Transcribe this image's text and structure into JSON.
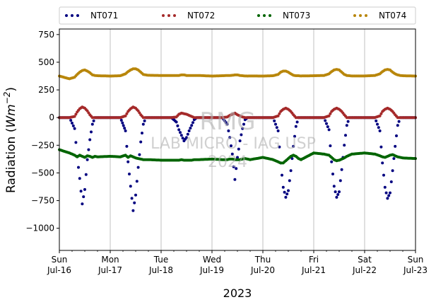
{
  "chart_data": {
    "type": "scatter",
    "year_label": "2023",
    "ylabel_prefix": "Radiation (",
    "ylabel_unit": "Wm",
    "ylabel_exp": "−2",
    "ylabel_suffix": ")",
    "ylim": [
      -1200,
      800
    ],
    "yticks": [
      750,
      500,
      250,
      0,
      -250,
      -500,
      -750,
      -1000
    ],
    "ytick_labels": [
      "750",
      "500",
      "250",
      "0",
      "−250",
      "−500",
      "−750",
      "−1000"
    ],
    "xlim": [
      "2023-07-16T00:00",
      "2023-07-23T00:00"
    ],
    "xticks": [
      {
        "day": "Sun",
        "date": "Jul-16"
      },
      {
        "day": "Mon",
        "date": "Jul-17"
      },
      {
        "day": "Tue",
        "date": "Jul-18"
      },
      {
        "day": "Wed",
        "date": "Jul-19"
      },
      {
        "day": "Thu",
        "date": "Jul-20"
      },
      {
        "day": "Fri",
        "date": "Jul-21"
      },
      {
        "day": "Sat",
        "date": "Jul-22"
      },
      {
        "day": "Sun",
        "date": "Jul-23"
      }
    ],
    "grid": "vertical",
    "legend_placement": "top",
    "watermark": {
      "line1": "RMG",
      "line2": "LAB MICRO - IAG USP",
      "line3": "2024"
    },
    "series": [
      {
        "name": "NT071",
        "color": "#000080",
        "x": [
          0.0,
          0.2,
          0.3,
          0.35,
          0.4,
          0.45,
          0.5,
          0.55,
          0.6,
          0.65,
          0.7,
          0.75,
          1.0,
          1.2,
          1.3,
          1.35,
          1.4,
          1.45,
          1.5,
          1.55,
          1.6,
          1.65,
          1.7,
          1.75,
          2.0,
          2.2,
          2.3,
          2.35,
          2.4,
          2.45,
          2.5,
          2.55,
          2.6,
          2.65,
          2.7,
          2.75,
          3.0,
          3.2,
          3.3,
          3.35,
          3.4,
          3.45,
          3.5,
          3.55,
          3.6,
          3.65,
          3.7,
          3.75,
          4.0,
          4.2,
          4.3,
          4.35,
          4.4,
          4.45,
          4.5,
          4.55,
          4.6,
          4.65,
          4.7,
          4.75,
          5.0,
          5.2,
          5.3,
          5.35,
          5.4,
          5.45,
          5.5,
          5.55,
          5.6,
          5.65,
          5.7,
          5.75,
          6.0,
          6.2,
          6.3,
          6.35,
          6.4,
          6.45,
          6.5,
          6.55,
          6.6,
          6.65,
          6.7,
          6.75,
          7.0
        ],
        "y": [
          0,
          0,
          -100,
          -350,
          -550,
          -780,
          -650,
          -380,
          -200,
          -60,
          0,
          0,
          0,
          0,
          -120,
          -400,
          -620,
          -840,
          -700,
          -450,
          -220,
          -60,
          0,
          0,
          0,
          0,
          -40,
          -110,
          -160,
          -210,
          -180,
          -120,
          -70,
          -20,
          0,
          0,
          0,
          0,
          -60,
          -180,
          -330,
          -560,
          -360,
          -210,
          -100,
          -20,
          0,
          0,
          0,
          0,
          -120,
          -410,
          -630,
          -720,
          -660,
          -480,
          -260,
          -80,
          0,
          0,
          0,
          0,
          -110,
          -400,
          -620,
          -720,
          -670,
          -470,
          -250,
          -70,
          0,
          0,
          0,
          0,
          -120,
          -410,
          -630,
          -730,
          -680,
          -480,
          -260,
          -70,
          0,
          0,
          0
        ]
      },
      {
        "name": "NT072",
        "color": "#a52a2a",
        "x": [
          0.0,
          0.2,
          0.3,
          0.35,
          0.4,
          0.45,
          0.5,
          0.55,
          0.6,
          0.65,
          0.7,
          0.75,
          1.0,
          1.2,
          1.3,
          1.35,
          1.4,
          1.45,
          1.5,
          1.55,
          1.6,
          1.65,
          1.7,
          1.75,
          2.0,
          2.2,
          2.3,
          2.35,
          2.4,
          2.45,
          2.5,
          2.55,
          2.6,
          2.65,
          2.7,
          2.75,
          3.0,
          3.2,
          3.3,
          3.35,
          3.4,
          3.45,
          3.5,
          3.55,
          3.6,
          3.65,
          3.7,
          3.75,
          4.0,
          4.2,
          4.3,
          4.35,
          4.4,
          4.45,
          4.5,
          4.55,
          4.6,
          4.65,
          4.7,
          4.75,
          5.0,
          5.2,
          5.3,
          5.35,
          5.4,
          5.45,
          5.5,
          5.55,
          5.6,
          5.65,
          5.7,
          5.75,
          6.0,
          6.2,
          6.3,
          6.35,
          6.4,
          6.45,
          6.5,
          6.55,
          6.6,
          6.65,
          6.7,
          6.75,
          7.0
        ],
        "y": [
          0,
          0,
          10,
          50,
          80,
          95,
          85,
          60,
          25,
          0,
          0,
          0,
          0,
          0,
          15,
          55,
          80,
          95,
          85,
          60,
          25,
          0,
          0,
          0,
          0,
          0,
          5,
          30,
          40,
          35,
          30,
          20,
          10,
          0,
          0,
          0,
          0,
          0,
          5,
          20,
          30,
          40,
          25,
          15,
          5,
          0,
          0,
          0,
          0,
          0,
          15,
          55,
          75,
          85,
          75,
          55,
          25,
          0,
          0,
          0,
          0,
          0,
          15,
          55,
          75,
          85,
          75,
          55,
          25,
          0,
          0,
          0,
          0,
          0,
          15,
          55,
          75,
          85,
          75,
          55,
          25,
          0,
          0,
          0,
          0
        ]
      },
      {
        "name": "NT073",
        "color": "#006400",
        "x": [
          0.0,
          0.2,
          0.3,
          0.35,
          0.4,
          0.45,
          0.5,
          0.55,
          0.6,
          0.65,
          0.7,
          0.75,
          1.0,
          1.2,
          1.3,
          1.35,
          1.4,
          1.45,
          1.5,
          1.55,
          1.6,
          1.65,
          1.7,
          1.75,
          2.0,
          2.2,
          2.3,
          2.35,
          2.4,
          2.45,
          2.5,
          2.55,
          2.6,
          2.65,
          2.7,
          2.75,
          3.0,
          3.2,
          3.3,
          3.35,
          3.4,
          3.45,
          3.5,
          3.55,
          3.6,
          3.65,
          3.7,
          3.75,
          4.0,
          4.2,
          4.3,
          4.35,
          4.4,
          4.45,
          4.5,
          4.55,
          4.6,
          4.65,
          4.7,
          4.75,
          5.0,
          5.2,
          5.3,
          5.35,
          5.4,
          5.45,
          5.5,
          5.55,
          5.6,
          5.65,
          5.7,
          5.75,
          6.0,
          6.2,
          6.3,
          6.35,
          6.4,
          6.45,
          6.5,
          6.55,
          6.6,
          6.65,
          6.7,
          6.75,
          7.0
        ],
        "y": [
          -290,
          -320,
          -340,
          -355,
          -340,
          -350,
          -360,
          -345,
          -350,
          -360,
          -350,
          -355,
          -350,
          -355,
          -340,
          -360,
          -345,
          -355,
          -365,
          -370,
          -375,
          -380,
          -380,
          -380,
          -385,
          -385,
          -385,
          -385,
          -380,
          -385,
          -385,
          -385,
          -385,
          -380,
          -380,
          -380,
          -375,
          -380,
          -380,
          -375,
          -375,
          -380,
          -380,
          -380,
          -375,
          -370,
          -375,
          -380,
          -360,
          -380,
          -400,
          -410,
          -410,
          -390,
          -370,
          -350,
          -340,
          -350,
          -370,
          -380,
          -320,
          -330,
          -340,
          -360,
          -380,
          -390,
          -385,
          -375,
          -365,
          -350,
          -340,
          -330,
          -320,
          -330,
          -345,
          -355,
          -360,
          -350,
          -340,
          -335,
          -345,
          -355,
          -360,
          -365,
          -370
        ]
      },
      {
        "name": "NT074",
        "color": "#b8860b",
        "x": [
          0.0,
          0.2,
          0.3,
          0.35,
          0.4,
          0.45,
          0.5,
          0.55,
          0.6,
          0.65,
          0.7,
          0.75,
          1.0,
          1.2,
          1.3,
          1.35,
          1.4,
          1.45,
          1.5,
          1.55,
          1.6,
          1.65,
          1.7,
          1.75,
          2.0,
          2.2,
          2.3,
          2.35,
          2.4,
          2.45,
          2.5,
          2.55,
          2.6,
          2.65,
          2.7,
          2.75,
          3.0,
          3.2,
          3.3,
          3.35,
          3.4,
          3.45,
          3.5,
          3.55,
          3.6,
          3.65,
          3.7,
          3.75,
          4.0,
          4.2,
          4.3,
          4.35,
          4.4,
          4.45,
          4.5,
          4.55,
          4.6,
          4.65,
          4.7,
          4.75,
          5.0,
          5.2,
          5.3,
          5.35,
          5.4,
          5.45,
          5.5,
          5.55,
          5.6,
          5.65,
          5.7,
          5.75,
          6.0,
          6.2,
          6.3,
          6.35,
          6.4,
          6.45,
          6.5,
          6.55,
          6.6,
          6.65,
          6.7,
          6.75,
          7.0
        ],
        "y": [
          375,
          350,
          365,
          390,
          410,
          425,
          430,
          420,
          405,
          385,
          380,
          378,
          375,
          378,
          395,
          415,
          430,
          440,
          440,
          430,
          410,
          390,
          385,
          382,
          380,
          380,
          380,
          380,
          385,
          385,
          380,
          380,
          380,
          380,
          380,
          380,
          375,
          378,
          380,
          380,
          382,
          385,
          385,
          380,
          378,
          376,
          375,
          376,
          375,
          378,
          390,
          410,
          420,
          420,
          410,
          395,
          382,
          378,
          378,
          376,
          378,
          380,
          395,
          415,
          430,
          435,
          430,
          410,
          390,
          380,
          378,
          376,
          376,
          380,
          395,
          415,
          430,
          435,
          430,
          410,
          395,
          385,
          380,
          378,
          375
        ]
      }
    ]
  }
}
